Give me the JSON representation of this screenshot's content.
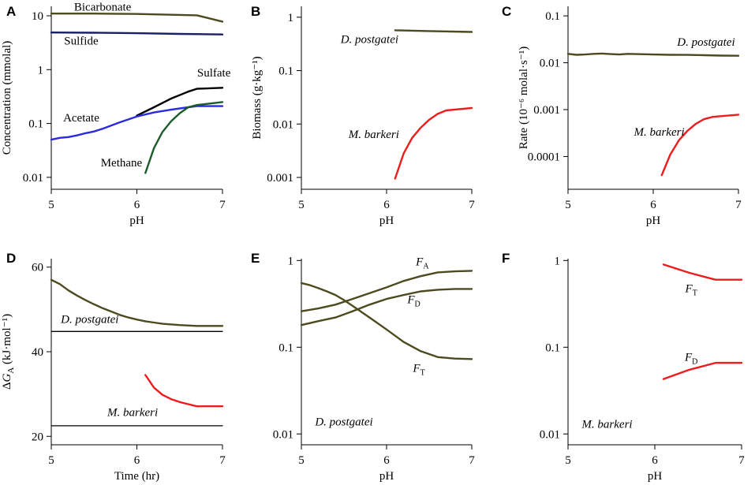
{
  "colors": {
    "olive": "#4d4a1f",
    "navy": "#1a1f66",
    "black": "#000000",
    "blue": "#2a2ae0",
    "green": "#1c5c2a",
    "red": "#ee1c1c"
  },
  "chart_data": [
    {
      "id": "A",
      "letter": "A",
      "type": "line",
      "yscale": "log",
      "xlim": [
        5,
        7
      ],
      "ylim": [
        0.006,
        15
      ],
      "xticks": [
        "5",
        "6",
        "7"
      ],
      "yticks": [
        {
          "v": 10,
          "label": "10"
        },
        {
          "v": 1,
          "label": "1"
        },
        {
          "v": 0.1,
          "label": "0.1"
        },
        {
          "v": 0.01,
          "label": "0.01"
        }
      ],
      "xlabel": "pH",
      "ylabel": "Concentration (mmolal)",
      "series": [
        {
          "name": "Bicarbonate",
          "color": "olive",
          "x": [
            5,
            5.5,
            6,
            6.5,
            6.7,
            7
          ],
          "y": [
            11,
            11,
            10.8,
            10.4,
            10.2,
            7.8
          ]
        },
        {
          "name": "Sulfide",
          "color": "navy",
          "x": [
            5,
            5.5,
            6,
            6.5,
            7
          ],
          "y": [
            4.9,
            4.85,
            4.75,
            4.6,
            4.5
          ]
        },
        {
          "name": "Sulfate",
          "color": "black",
          "x": [
            6.0,
            6.2,
            6.4,
            6.6,
            6.7,
            7.0
          ],
          "y": [
            0.14,
            0.2,
            0.29,
            0.39,
            0.44,
            0.46
          ]
        },
        {
          "name": "Acetate",
          "color": "blue",
          "x": [
            5,
            5.1,
            5.2,
            5.3,
            5.4,
            5.5,
            5.6,
            5.8,
            6.0,
            6.2,
            6.4,
            6.6,
            6.7,
            7.0
          ],
          "y": [
            0.05,
            0.054,
            0.056,
            0.06,
            0.066,
            0.071,
            0.08,
            0.105,
            0.135,
            0.16,
            0.18,
            0.2,
            0.21,
            0.21
          ]
        },
        {
          "name": "Methane",
          "color": "green",
          "x": [
            6.1,
            6.2,
            6.3,
            6.4,
            6.5,
            6.6,
            6.7,
            7.0
          ],
          "y": [
            0.012,
            0.035,
            0.07,
            0.11,
            0.155,
            0.2,
            0.22,
            0.25
          ]
        }
      ],
      "labels": [
        {
          "text": "Bicarbonate",
          "x": 5.6,
          "y": 12.5,
          "color": "black",
          "italic": false
        },
        {
          "text": "Sulfide",
          "x": 5.35,
          "y": 2.9,
          "color": "black",
          "italic": false
        },
        {
          "text": "Sulfate",
          "x": 6.9,
          "y": 0.75,
          "color": "black",
          "italic": false
        },
        {
          "text": "Acetate",
          "x": 5.35,
          "y": 0.11,
          "color": "black",
          "italic": false
        },
        {
          "text": "Methane",
          "x": 5.82,
          "y": 0.016,
          "color": "black",
          "italic": false
        }
      ]
    },
    {
      "id": "B",
      "letter": "B",
      "type": "line",
      "yscale": "log",
      "xlim": [
        5,
        7
      ],
      "ylim": [
        0.0006,
        1.6
      ],
      "xticks": [
        "5",
        "6",
        "7"
      ],
      "yticks": [
        {
          "v": 1,
          "label": "1"
        },
        {
          "v": 0.1,
          "label": "0.1"
        },
        {
          "v": 0.01,
          "label": "0.01"
        },
        {
          "v": 0.001,
          "label": "0.001"
        }
      ],
      "xlabel": "pH",
      "ylabel": "Biomass (g·kg⁻¹)",
      "series": [
        {
          "name": "D. postgatei",
          "color": "olive",
          "x": [
            6.1,
            6.5,
            7.0
          ],
          "y": [
            0.57,
            0.55,
            0.53
          ]
        },
        {
          "name": "M. barkeri",
          "color": "red",
          "x": [
            6.1,
            6.2,
            6.3,
            6.4,
            6.5,
            6.6,
            6.7,
            7.0
          ],
          "y": [
            0.00095,
            0.0028,
            0.0055,
            0.0085,
            0.012,
            0.0155,
            0.018,
            0.02
          ]
        }
      ],
      "labels": [
        {
          "text": "D. postgatei",
          "x": 5.8,
          "y": 0.33,
          "color": "black",
          "italic": true
        },
        {
          "text": "M. barkeri",
          "x": 5.85,
          "y": 0.0055,
          "color": "black",
          "italic": true
        }
      ]
    },
    {
      "id": "C",
      "letter": "C",
      "type": "line",
      "yscale": "log",
      "xlim": [
        5,
        7
      ],
      "ylim": [
        2e-05,
        0.16
      ],
      "xticks": [
        "5",
        "6",
        "7"
      ],
      "yticks": [
        {
          "v": 0.1,
          "label": "0.1"
        },
        {
          "v": 0.01,
          "label": "0.01"
        },
        {
          "v": 0.001,
          "label": "0.001"
        },
        {
          "v": 0.0001,
          "label": "0.0001"
        }
      ],
      "xlabel": "pH",
      "ylabel": "Rate (10⁻⁶ molal·s⁻¹)",
      "series": [
        {
          "name": "D. postgatei",
          "color": "olive",
          "x": [
            5,
            5.1,
            5.2,
            5.3,
            5.4,
            5.5,
            5.6,
            5.7,
            5.8,
            6.0,
            6.2,
            6.4,
            6.6,
            6.8,
            7.0
          ],
          "y": [
            0.0155,
            0.0148,
            0.015,
            0.0155,
            0.0157,
            0.0153,
            0.015,
            0.0155,
            0.0153,
            0.015,
            0.0148,
            0.0147,
            0.0145,
            0.0142,
            0.0141
          ]
        },
        {
          "name": "M. barkeri",
          "color": "red",
          "x": [
            6.1,
            6.2,
            6.3,
            6.4,
            6.5,
            6.6,
            6.7,
            7.0
          ],
          "y": [
            4e-05,
            0.00011,
            0.00022,
            0.00035,
            0.0005,
            0.00063,
            0.0007,
            0.00078
          ]
        }
      ],
      "labels": [
        {
          "text": "D. postgatei",
          "x": 6.62,
          "y": 0.023,
          "color": "black",
          "italic": true
        },
        {
          "text": "M. barkeri",
          "x": 6.07,
          "y": 0.00028,
          "color": "black",
          "italic": true
        }
      ]
    },
    {
      "id": "D",
      "letter": "D",
      "type": "line",
      "yscale": "linear",
      "xlim": [
        5,
        7
      ],
      "ylim": [
        18,
        62
      ],
      "xticks": [
        "5",
        "6",
        "7"
      ],
      "yticks": [
        {
          "v": 60,
          "label": "60"
        },
        {
          "v": 40,
          "label": "40"
        },
        {
          "v": 20,
          "label": "20"
        }
      ],
      "xlabel": "Time (hr)",
      "ylabel": "ΔG_A (kJ·mol⁻¹)",
      "series": [
        {
          "name": "D. postgatei",
          "color": "olive",
          "x": [
            5,
            5.1,
            5.2,
            5.3,
            5.4,
            5.5,
            5.6,
            5.7,
            5.8,
            5.9,
            6.0,
            6.1,
            6.2,
            6.3,
            6.5,
            6.7,
            7.0
          ],
          "y": [
            57,
            56,
            54.5,
            53.3,
            52.2,
            51.2,
            50.3,
            49.5,
            48.7,
            48.1,
            47.6,
            47.2,
            46.9,
            46.6,
            46.3,
            46.1,
            46.1
          ]
        },
        {
          "name": "D. postgatei minimum",
          "color": "black",
          "x": [
            5,
            7
          ],
          "y": [
            44.8,
            44.8
          ]
        },
        {
          "name": "M. barkeri",
          "color": "red",
          "x": [
            6.1,
            6.2,
            6.3,
            6.4,
            6.5,
            6.6,
            6.7,
            7.0
          ],
          "y": [
            34.5,
            31.5,
            29.8,
            28.8,
            28.1,
            27.6,
            27.1,
            27.1
          ]
        },
        {
          "name": "M. barkeri minimum",
          "color": "black",
          "x": [
            5,
            7
          ],
          "y": [
            22.5,
            22.5
          ]
        }
      ],
      "labels": [
        {
          "text": "D. postgatei",
          "x": 5.45,
          "y": 46.8,
          "color": "black",
          "italic": true
        },
        {
          "text": "M. barkeri",
          "x": 5.95,
          "y": 24.8,
          "color": "black",
          "italic": true
        }
      ]
    },
    {
      "id": "E",
      "letter": "E",
      "type": "line",
      "yscale": "log",
      "xlim": [
        5,
        7
      ],
      "ylim": [
        0.0075,
        1.05
      ],
      "xticks": [
        "5",
        "6",
        "7"
      ],
      "yticks": [
        {
          "v": 1,
          "label": "1"
        },
        {
          "v": 0.1,
          "label": "0.1"
        },
        {
          "v": 0.01,
          "label": "0.01"
        }
      ],
      "xlabel": "pH",
      "ylabel": "",
      "series": [
        {
          "name": "F_A",
          "color": "olive",
          "x": [
            5,
            5.2,
            5.4,
            5.6,
            5.8,
            6.0,
            6.2,
            6.4,
            6.6,
            6.8,
            7.0
          ],
          "y": [
            0.26,
            0.28,
            0.31,
            0.36,
            0.42,
            0.49,
            0.58,
            0.66,
            0.73,
            0.75,
            0.76
          ]
        },
        {
          "name": "F_D",
          "color": "olive",
          "x": [
            5,
            5.2,
            5.4,
            5.6,
            5.8,
            6.0,
            6.2,
            6.4,
            6.6,
            6.8,
            7.0
          ],
          "y": [
            0.18,
            0.2,
            0.22,
            0.26,
            0.31,
            0.36,
            0.4,
            0.44,
            0.46,
            0.47,
            0.47
          ]
        },
        {
          "name": "F_T",
          "color": "olive",
          "x": [
            5,
            5.1,
            5.2,
            5.3,
            5.4,
            5.5,
            5.6,
            5.8,
            6.0,
            6.2,
            6.4,
            6.6,
            6.8,
            7.0
          ],
          "y": [
            0.55,
            0.52,
            0.48,
            0.44,
            0.4,
            0.35,
            0.3,
            0.22,
            0.16,
            0.115,
            0.09,
            0.077,
            0.074,
            0.073
          ]
        }
      ],
      "labels": [
        {
          "text": "F",
          "sub": "A",
          "x": 6.42,
          "y": 0.88,
          "color": "black",
          "italic": true
        },
        {
          "text": "F",
          "sub": "D",
          "x": 6.32,
          "y": 0.32,
          "color": "black",
          "italic": true
        },
        {
          "text": "F",
          "sub": "T",
          "x": 6.38,
          "y": 0.052,
          "color": "black",
          "italic": true
        },
        {
          "text": "D. postgatei",
          "x": 5.5,
          "y": 0.0125,
          "color": "black",
          "italic": true
        }
      ]
    },
    {
      "id": "F",
      "letter": "F",
      "type": "line",
      "yscale": "log",
      "xlim": [
        5,
        7
      ],
      "ylim": [
        0.0075,
        1.05
      ],
      "xticks": [
        "5",
        "6",
        "7"
      ],
      "yticks": [
        {
          "v": 1,
          "label": "1"
        },
        {
          "v": 0.1,
          "label": "0.1"
        },
        {
          "v": 0.01,
          "label": "0.01"
        }
      ],
      "xlabel": "pH",
      "ylabel": "",
      "series": [
        {
          "name": "F_T",
          "color": "red",
          "x": [
            6.1,
            6.4,
            6.7,
            7.0
          ],
          "y": [
            0.9,
            0.72,
            0.6,
            0.6
          ]
        },
        {
          "name": "F_D",
          "color": "red",
          "x": [
            6.1,
            6.4,
            6.7,
            7.0
          ],
          "y": [
            0.043,
            0.055,
            0.066,
            0.066
          ]
        }
      ],
      "labels": [
        {
          "text": "F",
          "sub": "T",
          "x": 6.42,
          "y": 0.43,
          "color": "black",
          "italic": true
        },
        {
          "text": "F",
          "sub": "D",
          "x": 6.42,
          "y": 0.07,
          "color": "black",
          "italic": true
        },
        {
          "text": "M. barkeri",
          "x": 5.45,
          "y": 0.0118,
          "color": "black",
          "italic": true
        }
      ]
    }
  ]
}
